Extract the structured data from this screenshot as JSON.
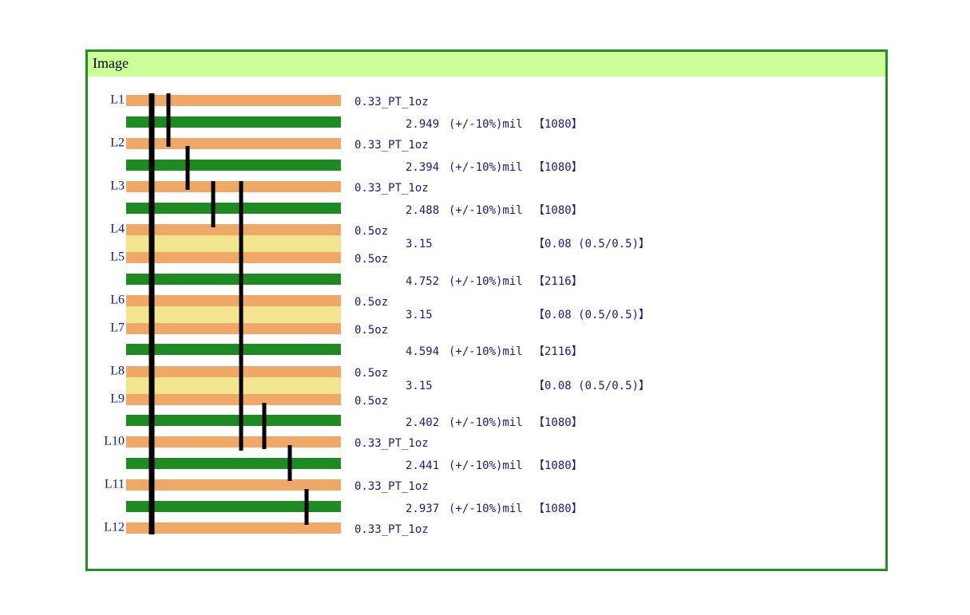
{
  "header": {
    "title": "Image"
  },
  "layers": [
    {
      "label": "L1",
      "copper": "0.33_PT_1oz"
    },
    {
      "label": "L2",
      "copper": "0.33_PT_1oz"
    },
    {
      "label": "L3",
      "copper": "0.33_PT_1oz"
    },
    {
      "label": "L4",
      "copper": "0.5oz"
    },
    {
      "label": "L5",
      "copper": "0.5oz"
    },
    {
      "label": "L6",
      "copper": "0.5oz"
    },
    {
      "label": "L7",
      "copper": "0.5oz"
    },
    {
      "label": "L8",
      "copper": "0.5oz"
    },
    {
      "label": "L9",
      "copper": "0.5oz"
    },
    {
      "label": "L10",
      "copper": "0.33_PT_1oz"
    },
    {
      "label": "L11",
      "copper": "0.33_PT_1oz"
    },
    {
      "label": "L12",
      "copper": "0.33_PT_1oz"
    }
  ],
  "dielectrics": [
    {
      "thickness": 2.949,
      "tolerance": "(+/-10%)mil",
      "material": "【1080】",
      "color": "#1f8a24"
    },
    {
      "thickness": 2.394,
      "tolerance": "(+/-10%)mil",
      "material": "【1080】",
      "color": "#1f8a24"
    },
    {
      "thickness": 2.488,
      "tolerance": "(+/-10%)mil",
      "material": "【1080】",
      "color": "#1f8a24"
    },
    {
      "thickness": 3.15,
      "material": "【0.08 (0.5/0.5)】",
      "color": "#f3e48f"
    },
    {
      "thickness": 4.752,
      "tolerance": "(+/-10%)mil",
      "material": "【2116】",
      "color": "#1f8a24"
    },
    {
      "thickness": 3.15,
      "material": "【0.08 (0.5/0.5)】",
      "color": "#f3e48f"
    },
    {
      "thickness": 4.594,
      "tolerance": "(+/-10%)mil",
      "material": "【2116】",
      "color": "#1f8a24"
    },
    {
      "thickness": 3.15,
      "material": "【0.08 (0.5/0.5)】",
      "color": "#f3e48f"
    },
    {
      "thickness": 2.402,
      "tolerance": "(+/-10%)mil",
      "material": "【1080】",
      "color": "#1f8a24"
    },
    {
      "thickness": 2.441,
      "tolerance": "(+/-10%)mil",
      "material": "【1080】",
      "color": "#1f8a24"
    },
    {
      "thickness": 2.937,
      "tolerance": "(+/-10%)mil",
      "material": "【1080】",
      "color": "#1f8a24"
    }
  ]
}
